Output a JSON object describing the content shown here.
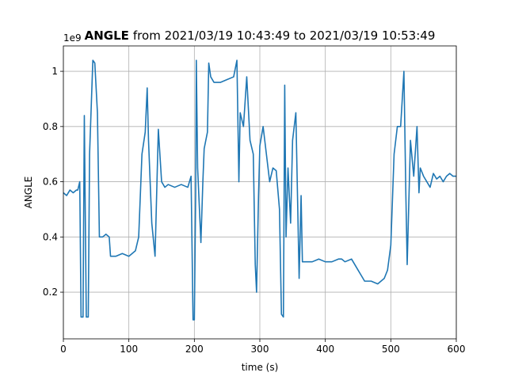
{
  "chart_data": {
    "type": "line",
    "title": [
      "ANGLE",
      "from 2021/03/19 10:43:49 to 2021/03/19 10:53:49"
    ],
    "offset_label": "1e9",
    "xlabel": "time (s)",
    "ylabel": "ANGLE",
    "x": [
      0,
      5,
      10,
      15,
      20,
      22,
      25,
      27,
      30,
      32,
      35,
      38,
      40,
      45,
      48,
      52,
      55,
      60,
      65,
      70,
      72,
      80,
      90,
      100,
      110,
      115,
      120,
      125,
      128,
      130,
      135,
      140,
      145,
      150,
      155,
      160,
      170,
      180,
      190,
      195,
      198,
      200,
      202,
      203,
      205,
      210,
      213,
      215,
      220,
      222,
      225,
      230,
      240,
      250,
      260,
      265,
      268,
      270,
      275,
      280,
      285,
      290,
      293,
      295,
      298,
      300,
      305,
      310,
      315,
      320,
      325,
      330,
      333,
      336,
      338,
      340,
      343,
      347,
      350,
      355,
      360,
      363,
      365,
      370,
      380,
      390,
      400,
      410,
      420,
      425,
      430,
      440,
      445,
      450,
      455,
      460,
      470,
      480,
      490,
      495,
      500,
      505,
      510,
      515,
      520,
      523,
      525,
      530,
      535,
      540,
      543,
      545,
      550,
      555,
      560,
      565,
      570,
      575,
      580,
      585,
      590,
      595,
      600
    ],
    "series": [
      {
        "name": "ANGLE",
        "color": "#1f77b4",
        "values": [
          0.56,
          0.55,
          0.57,
          0.56,
          0.57,
          0.57,
          0.6,
          0.11,
          0.11,
          0.84,
          0.11,
          0.11,
          0.7,
          1.04,
          1.03,
          0.85,
          0.4,
          0.4,
          0.41,
          0.4,
          0.33,
          0.33,
          0.34,
          0.33,
          0.35,
          0.4,
          0.7,
          0.78,
          0.94,
          0.75,
          0.45,
          0.33,
          0.79,
          0.6,
          0.58,
          0.59,
          0.58,
          0.59,
          0.58,
          0.62,
          0.1,
          0.1,
          0.55,
          1.04,
          0.65,
          0.38,
          0.6,
          0.72,
          0.78,
          1.03,
          0.98,
          0.96,
          0.96,
          0.97,
          0.98,
          1.04,
          0.6,
          0.85,
          0.8,
          0.98,
          0.75,
          0.7,
          0.3,
          0.2,
          0.55,
          0.73,
          0.8,
          0.7,
          0.6,
          0.65,
          0.64,
          0.5,
          0.12,
          0.11,
          0.95,
          0.4,
          0.65,
          0.45,
          0.75,
          0.85,
          0.25,
          0.55,
          0.31,
          0.31,
          0.31,
          0.32,
          0.31,
          0.31,
          0.32,
          0.32,
          0.31,
          0.32,
          0.3,
          0.28,
          0.26,
          0.24,
          0.24,
          0.23,
          0.25,
          0.28,
          0.37,
          0.7,
          0.8,
          0.8,
          1.0,
          0.55,
          0.3,
          0.75,
          0.62,
          0.8,
          0.56,
          0.65,
          0.62,
          0.6,
          0.58,
          0.63,
          0.61,
          0.62,
          0.6,
          0.62,
          0.63,
          0.62,
          0.62
        ]
      }
    ],
    "xlim": [
      0,
      600
    ],
    "xticks": [
      0,
      100,
      200,
      300,
      400,
      500,
      600
    ],
    "ylim": [
      0.031,
      1.092
    ],
    "yticks": [
      0.2,
      0.4,
      0.6,
      0.8,
      1.0
    ],
    "grid": true
  }
}
